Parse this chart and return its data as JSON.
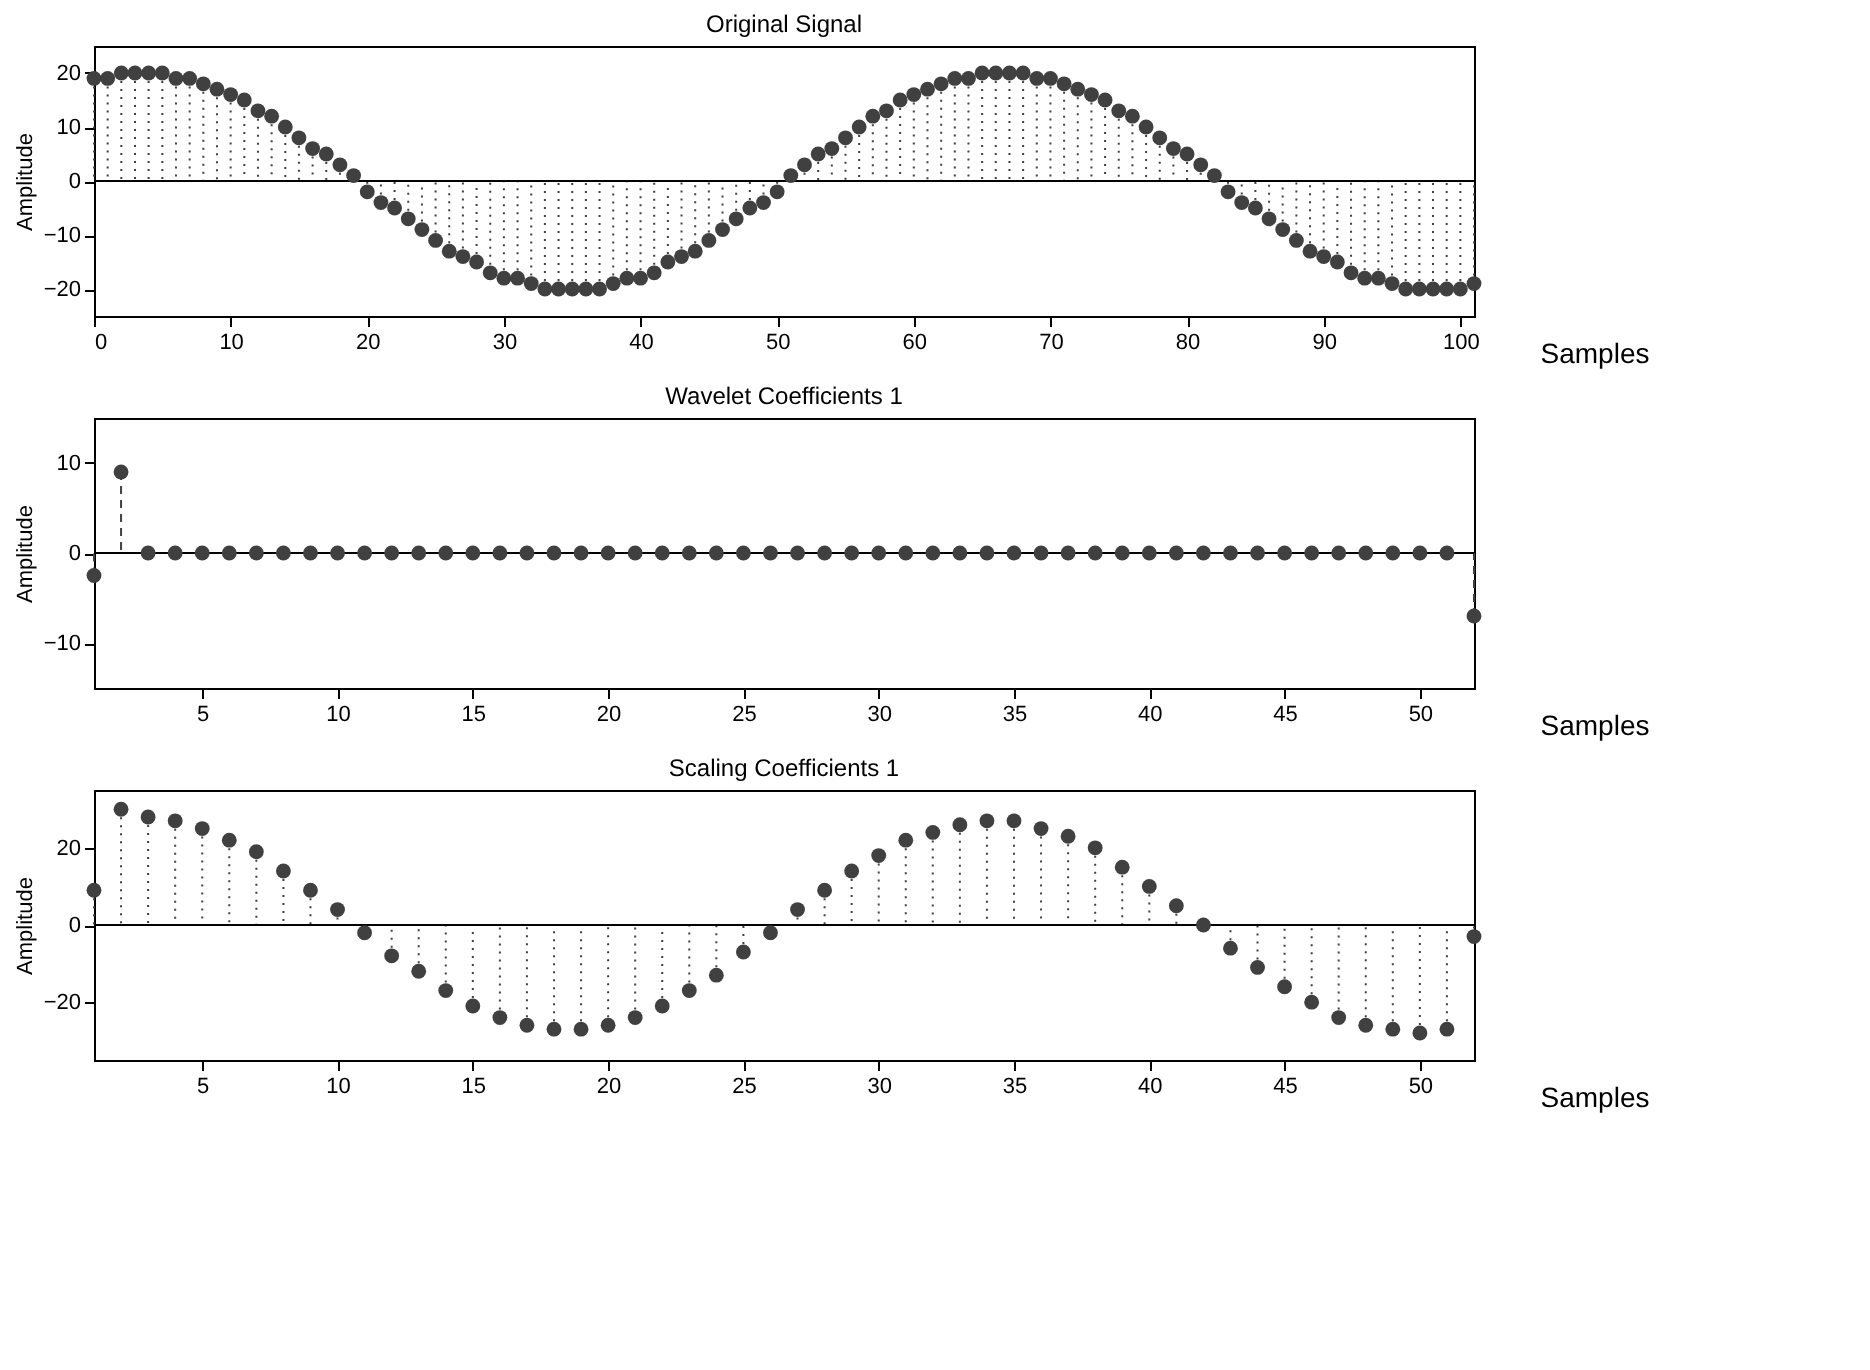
{
  "chart_data": [
    {
      "type": "lollipop",
      "title": "Original Signal",
      "xlabel": "Samples",
      "ylabel": "Amplitude",
      "x": [
        0,
        1,
        2,
        3,
        4,
        5,
        6,
        7,
        8,
        9,
        10,
        11,
        12,
        13,
        14,
        15,
        16,
        17,
        18,
        19,
        20,
        21,
        22,
        23,
        24,
        25,
        26,
        27,
        28,
        29,
        30,
        31,
        32,
        33,
        34,
        35,
        36,
        37,
        38,
        39,
        40,
        41,
        42,
        43,
        44,
        45,
        46,
        47,
        48,
        49,
        50,
        51,
        52,
        53,
        54,
        55,
        56,
        57,
        58,
        59,
        60,
        61,
        62,
        63,
        64,
        65,
        66,
        67,
        68,
        69,
        70,
        71,
        72,
        73,
        74,
        75,
        76,
        77,
        78,
        79,
        80,
        81,
        82,
        83,
        84,
        85,
        86,
        87,
        88,
        89,
        90,
        91,
        92,
        93,
        94,
        95,
        96,
        97,
        98,
        99,
        100,
        101
      ],
      "values": [
        19,
        19,
        20,
        20,
        20,
        20,
        19,
        19,
        18,
        17,
        16,
        15,
        13,
        12,
        10,
        8,
        6,
        5,
        3,
        1,
        -2,
        -4,
        -5,
        -7,
        -9,
        -11,
        -13,
        -14,
        -15,
        -17,
        -18,
        -18,
        -19,
        -20,
        -20,
        -20,
        -20,
        -20,
        -19,
        -18,
        -18,
        -17,
        -15,
        -14,
        -13,
        -11,
        -9,
        -7,
        -5,
        -4,
        -2,
        1,
        3,
        5,
        6,
        8,
        10,
        12,
        13,
        15,
        16,
        17,
        18,
        19,
        19,
        20,
        20,
        20,
        20,
        19,
        19,
        18,
        17,
        16,
        15,
        13,
        12,
        10,
        8,
        6,
        5,
        3,
        1,
        -2,
        -4,
        -5,
        -7,
        -9,
        -11,
        -13,
        -14,
        -15,
        -17,
        -18,
        -18,
        -19,
        -20,
        -20,
        -20,
        -20,
        -20,
        -19
      ],
      "color": "#404040",
      "marker": "circle",
      "line_style": "dotted",
      "xlim": [
        0,
        101
      ],
      "xticks": [
        0,
        10,
        20,
        30,
        40,
        50,
        60,
        70,
        80,
        90,
        100
      ],
      "ylim": [
        -25,
        25
      ],
      "yticks": [
        -20,
        -10,
        0,
        10,
        20
      ]
    },
    {
      "type": "lollipop",
      "title": "Wavelet Coefficients 1",
      "xlabel": "Samples",
      "ylabel": "Amplitude",
      "x": [
        1,
        2,
        3,
        4,
        5,
        6,
        7,
        8,
        9,
        10,
        11,
        12,
        13,
        14,
        15,
        16,
        17,
        18,
        19,
        20,
        21,
        22,
        23,
        24,
        25,
        26,
        27,
        28,
        29,
        30,
        31,
        32,
        33,
        34,
        35,
        36,
        37,
        38,
        39,
        40,
        41,
        42,
        43,
        44,
        45,
        46,
        47,
        48,
        49,
        50,
        51,
        52
      ],
      "values": [
        -2.5,
        9,
        0,
        0,
        0,
        0,
        0,
        0,
        0,
        0,
        0,
        0,
        0,
        0,
        0,
        0,
        0,
        0,
        0,
        0,
        0,
        0,
        0,
        0,
        0,
        0,
        0,
        0,
        0,
        0,
        0,
        0,
        0,
        0,
        0,
        0,
        0,
        0,
        0,
        0,
        0,
        0,
        0,
        0,
        0,
        0,
        0,
        0,
        0,
        0,
        0,
        -7
      ],
      "color": "#404040",
      "marker": "circle",
      "line_style": "dashed",
      "xlim": [
        1,
        52
      ],
      "xticks": [
        5,
        10,
        15,
        20,
        25,
        30,
        35,
        40,
        45,
        50
      ],
      "ylim": [
        -15,
        15
      ],
      "yticks": [
        -10,
        0,
        10
      ]
    },
    {
      "type": "lollipop",
      "title": "Scaling Coefficients 1",
      "xlabel": "Samples",
      "ylabel": "Amplitude",
      "x": [
        1,
        2,
        3,
        4,
        5,
        6,
        7,
        8,
        9,
        10,
        11,
        12,
        13,
        14,
        15,
        16,
        17,
        18,
        19,
        20,
        21,
        22,
        23,
        24,
        25,
        26,
        27,
        28,
        29,
        30,
        31,
        32,
        33,
        34,
        35,
        36,
        37,
        38,
        39,
        40,
        41,
        42,
        43,
        44,
        45,
        46,
        47,
        48,
        49,
        50,
        51,
        52
      ],
      "values": [
        9,
        30,
        28,
        27,
        25,
        22,
        19,
        14,
        9,
        4,
        -2,
        -8,
        -12,
        -17,
        -21,
        -24,
        -26,
        -27,
        -27,
        -26,
        -24,
        -21,
        -17,
        -13,
        -7,
        -2,
        4,
        9,
        14,
        18,
        22,
        24,
        26,
        27,
        27,
        25,
        23,
        20,
        15,
        10,
        5,
        0,
        -6,
        -11,
        -16,
        -20,
        -24,
        -26,
        -27,
        -28,
        -27,
        -3
      ],
      "color": "#404040",
      "marker": "circle",
      "line_style": "dotted",
      "xlim": [
        1,
        52
      ],
      "xticks": [
        5,
        10,
        15,
        20,
        25,
        30,
        35,
        40,
        45,
        50
      ],
      "ylim": [
        -35,
        35
      ],
      "yticks": [
        -20,
        0,
        20
      ]
    }
  ]
}
